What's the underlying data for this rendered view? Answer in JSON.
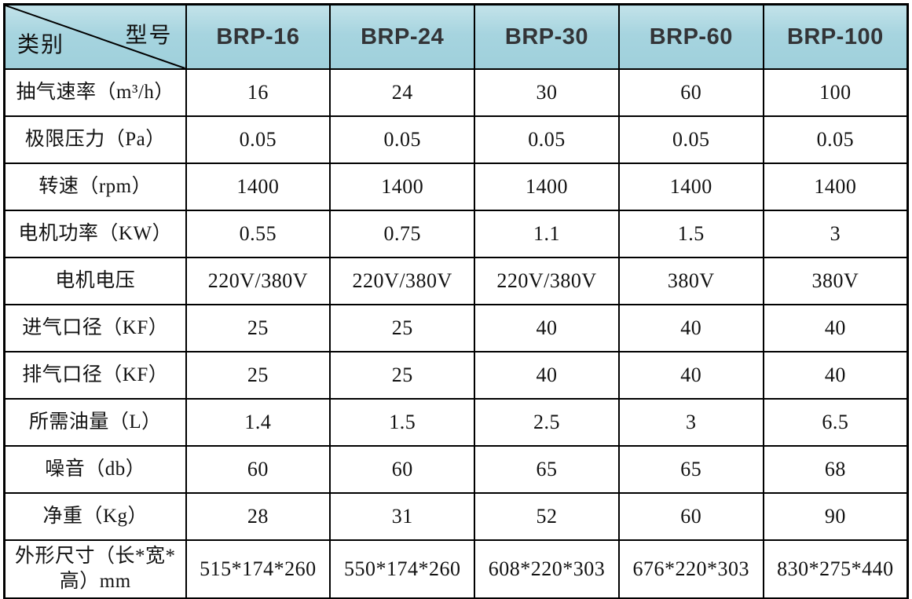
{
  "table": {
    "corner": {
      "bottom_left_label": "类别",
      "top_right_label": "型号"
    },
    "columns": [
      "BRP-16",
      "BRP-24",
      "BRP-30",
      "BRP-60",
      "BRP-100"
    ],
    "rows": [
      {
        "label": "抽气速率（m³/h）",
        "values": [
          "16",
          "24",
          "30",
          "60",
          "100"
        ]
      },
      {
        "label": "极限压力（Pa）",
        "values": [
          "0.05",
          "0.05",
          "0.05",
          "0.05",
          "0.05"
        ]
      },
      {
        "label": "转速（rpm）",
        "values": [
          "1400",
          "1400",
          "1400",
          "1400",
          "1400"
        ]
      },
      {
        "label": "电机功率（KW）",
        "values": [
          "0.55",
          "0.75",
          "1.1",
          "1.5",
          "3"
        ]
      },
      {
        "label": "电机电压",
        "values": [
          "220V/380V",
          "220V/380V",
          "220V/380V",
          "380V",
          "380V"
        ]
      },
      {
        "label": "进气口径（KF）",
        "values": [
          "25",
          "25",
          "40",
          "40",
          "40"
        ]
      },
      {
        "label": "排气口径（KF）",
        "values": [
          "25",
          "25",
          "40",
          "40",
          "40"
        ]
      },
      {
        "label": "所需油量（L）",
        "values": [
          "1.4",
          "1.5",
          "2.5",
          "3",
          "6.5"
        ]
      },
      {
        "label": "噪音（db）",
        "values": [
          "60",
          "60",
          "65",
          "65",
          "68"
        ]
      },
      {
        "label": "净重（Kg）",
        "values": [
          "28",
          "31",
          "52",
          "60",
          "90"
        ]
      },
      {
        "label": "外形尺寸（长*宽*高）mm",
        "values": [
          "515*174*260",
          "550*174*260",
          "608*220*303",
          "676*220*303",
          "830*275*440"
        ]
      }
    ]
  },
  "colors": {
    "header_bg": "#a6d4df",
    "header_bg_top": "#c2e2e9",
    "header_text": "#333437",
    "body_text": "#121212",
    "border": "#000000",
    "background": "#ffffff"
  },
  "chart_data": {
    "type": "table",
    "columns": [
      "BRP-16",
      "BRP-24",
      "BRP-30",
      "BRP-60",
      "BRP-100"
    ],
    "row_labels": [
      "抽气速率（m³/h）",
      "极限压力（Pa）",
      "转速（rpm）",
      "电机功率（KW）",
      "电机电压",
      "进气口径（KF）",
      "排气口径（KF）",
      "所需油量（L）",
      "噪音（db）",
      "净重（Kg）",
      "外形尺寸（长*宽*高）mm"
    ],
    "rows": [
      [
        "16",
        "24",
        "30",
        "60",
        "100"
      ],
      [
        "0.05",
        "0.05",
        "0.05",
        "0.05",
        "0.05"
      ],
      [
        "1400",
        "1400",
        "1400",
        "1400",
        "1400"
      ],
      [
        "0.55",
        "0.75",
        "1.1",
        "1.5",
        "3"
      ],
      [
        "220V/380V",
        "220V/380V",
        "220V/380V",
        "380V",
        "380V"
      ],
      [
        "25",
        "25",
        "40",
        "40",
        "40"
      ],
      [
        "25",
        "25",
        "40",
        "40",
        "40"
      ],
      [
        "1.4",
        "1.5",
        "2.5",
        "3",
        "6.5"
      ],
      [
        "60",
        "60",
        "65",
        "65",
        "68"
      ],
      [
        "28",
        "31",
        "52",
        "60",
        "90"
      ],
      [
        "515*174*260",
        "550*174*260",
        "608*220*303",
        "676*220*303",
        "830*275*440"
      ]
    ]
  }
}
